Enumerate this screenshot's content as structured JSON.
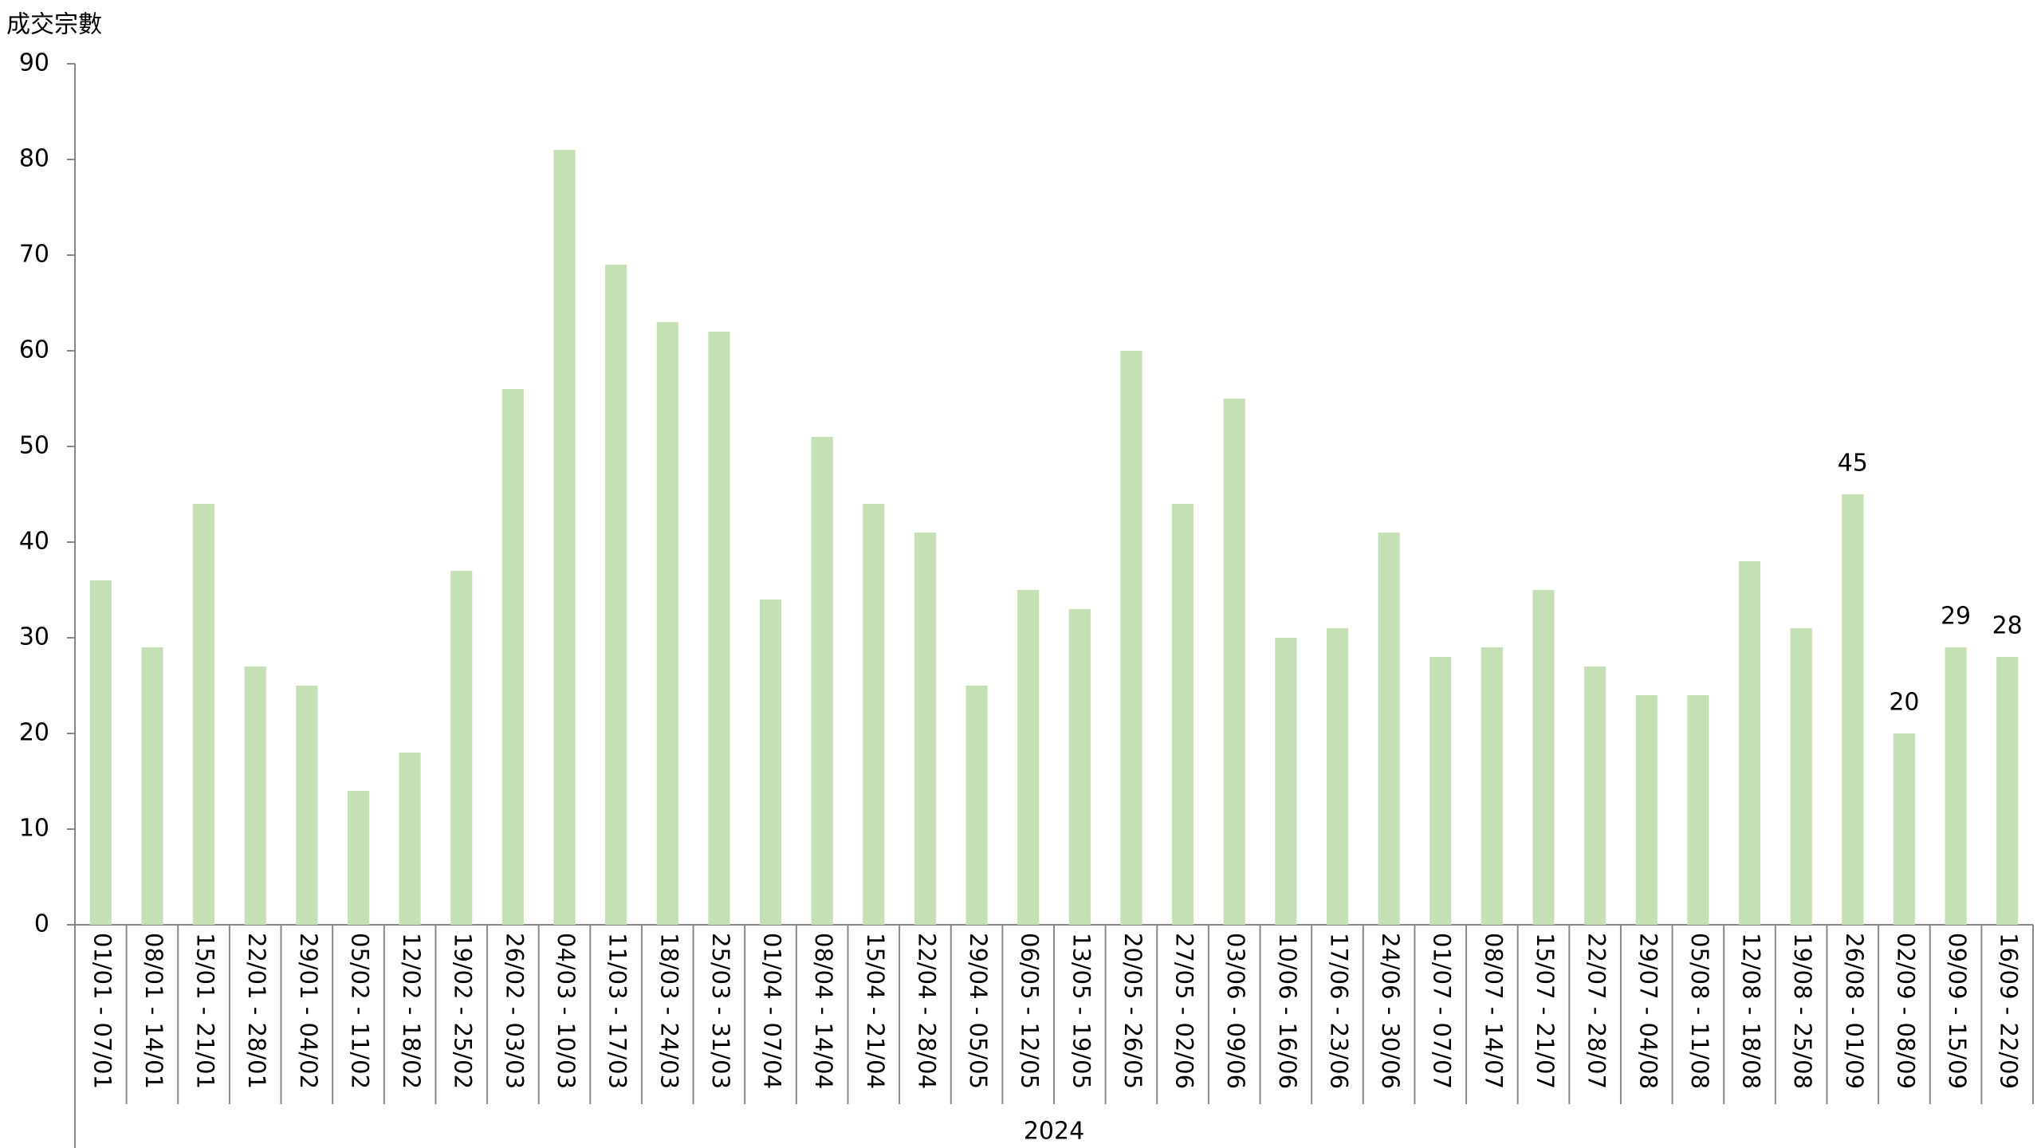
{
  "chart_data": {
    "type": "bar",
    "y_axis_title": "成交宗數",
    "group_label": "2024",
    "categories": [
      "01/01 - 07/01",
      "08/01 - 14/01",
      "15/01 - 21/01",
      "22/01 - 28/01",
      "29/01 - 04/02",
      "05/02 - 11/02",
      "12/02 - 18/02",
      "19/02 - 25/02",
      "26/02 - 03/03",
      "04/03 - 10/03",
      "11/03 - 17/03",
      "18/03 - 24/03",
      "25/03 - 31/03",
      "01/04 - 07/04",
      "08/04 - 14/04",
      "15/04 - 21/04",
      "22/04 - 28/04",
      "29/04 - 05/05",
      "06/05 - 12/05",
      "13/05 - 19/05",
      "20/05 - 26/05",
      "27/05 - 02/06",
      "03/06 - 09/06",
      "10/06 - 16/06",
      "17/06 - 23/06",
      "24/06 - 30/06",
      "01/07 - 07/07",
      "08/07 - 14/07",
      "15/07 - 21/07",
      "22/07 - 28/07",
      "29/07 - 04/08",
      "05/08 - 11/08",
      "12/08 - 18/08",
      "19/08 - 25/08",
      "26/08 - 01/09",
      "02/09 - 08/09",
      "09/09 - 15/09",
      "16/09 - 22/09"
    ],
    "values": [
      36,
      29,
      44,
      27,
      25,
      14,
      18,
      37,
      56,
      81,
      69,
      63,
      62,
      34,
      51,
      44,
      41,
      25,
      35,
      33,
      60,
      44,
      55,
      30,
      31,
      41,
      28,
      29,
      35,
      27,
      24,
      24,
      38,
      31,
      45,
      20,
      29,
      28
    ],
    "value_labels": [
      null,
      null,
      null,
      null,
      null,
      null,
      null,
      null,
      null,
      null,
      null,
      null,
      null,
      null,
      null,
      null,
      null,
      null,
      null,
      null,
      null,
      null,
      null,
      null,
      null,
      null,
      null,
      null,
      null,
      null,
      null,
      null,
      null,
      null,
      "45",
      "20",
      "29",
      "28"
    ],
    "color": "#c5e0b4",
    "ylim": [
      0,
      90
    ],
    "yticks": [
      0,
      10,
      20,
      30,
      40,
      50,
      60,
      70,
      80,
      90
    ],
    "grid": false
  }
}
